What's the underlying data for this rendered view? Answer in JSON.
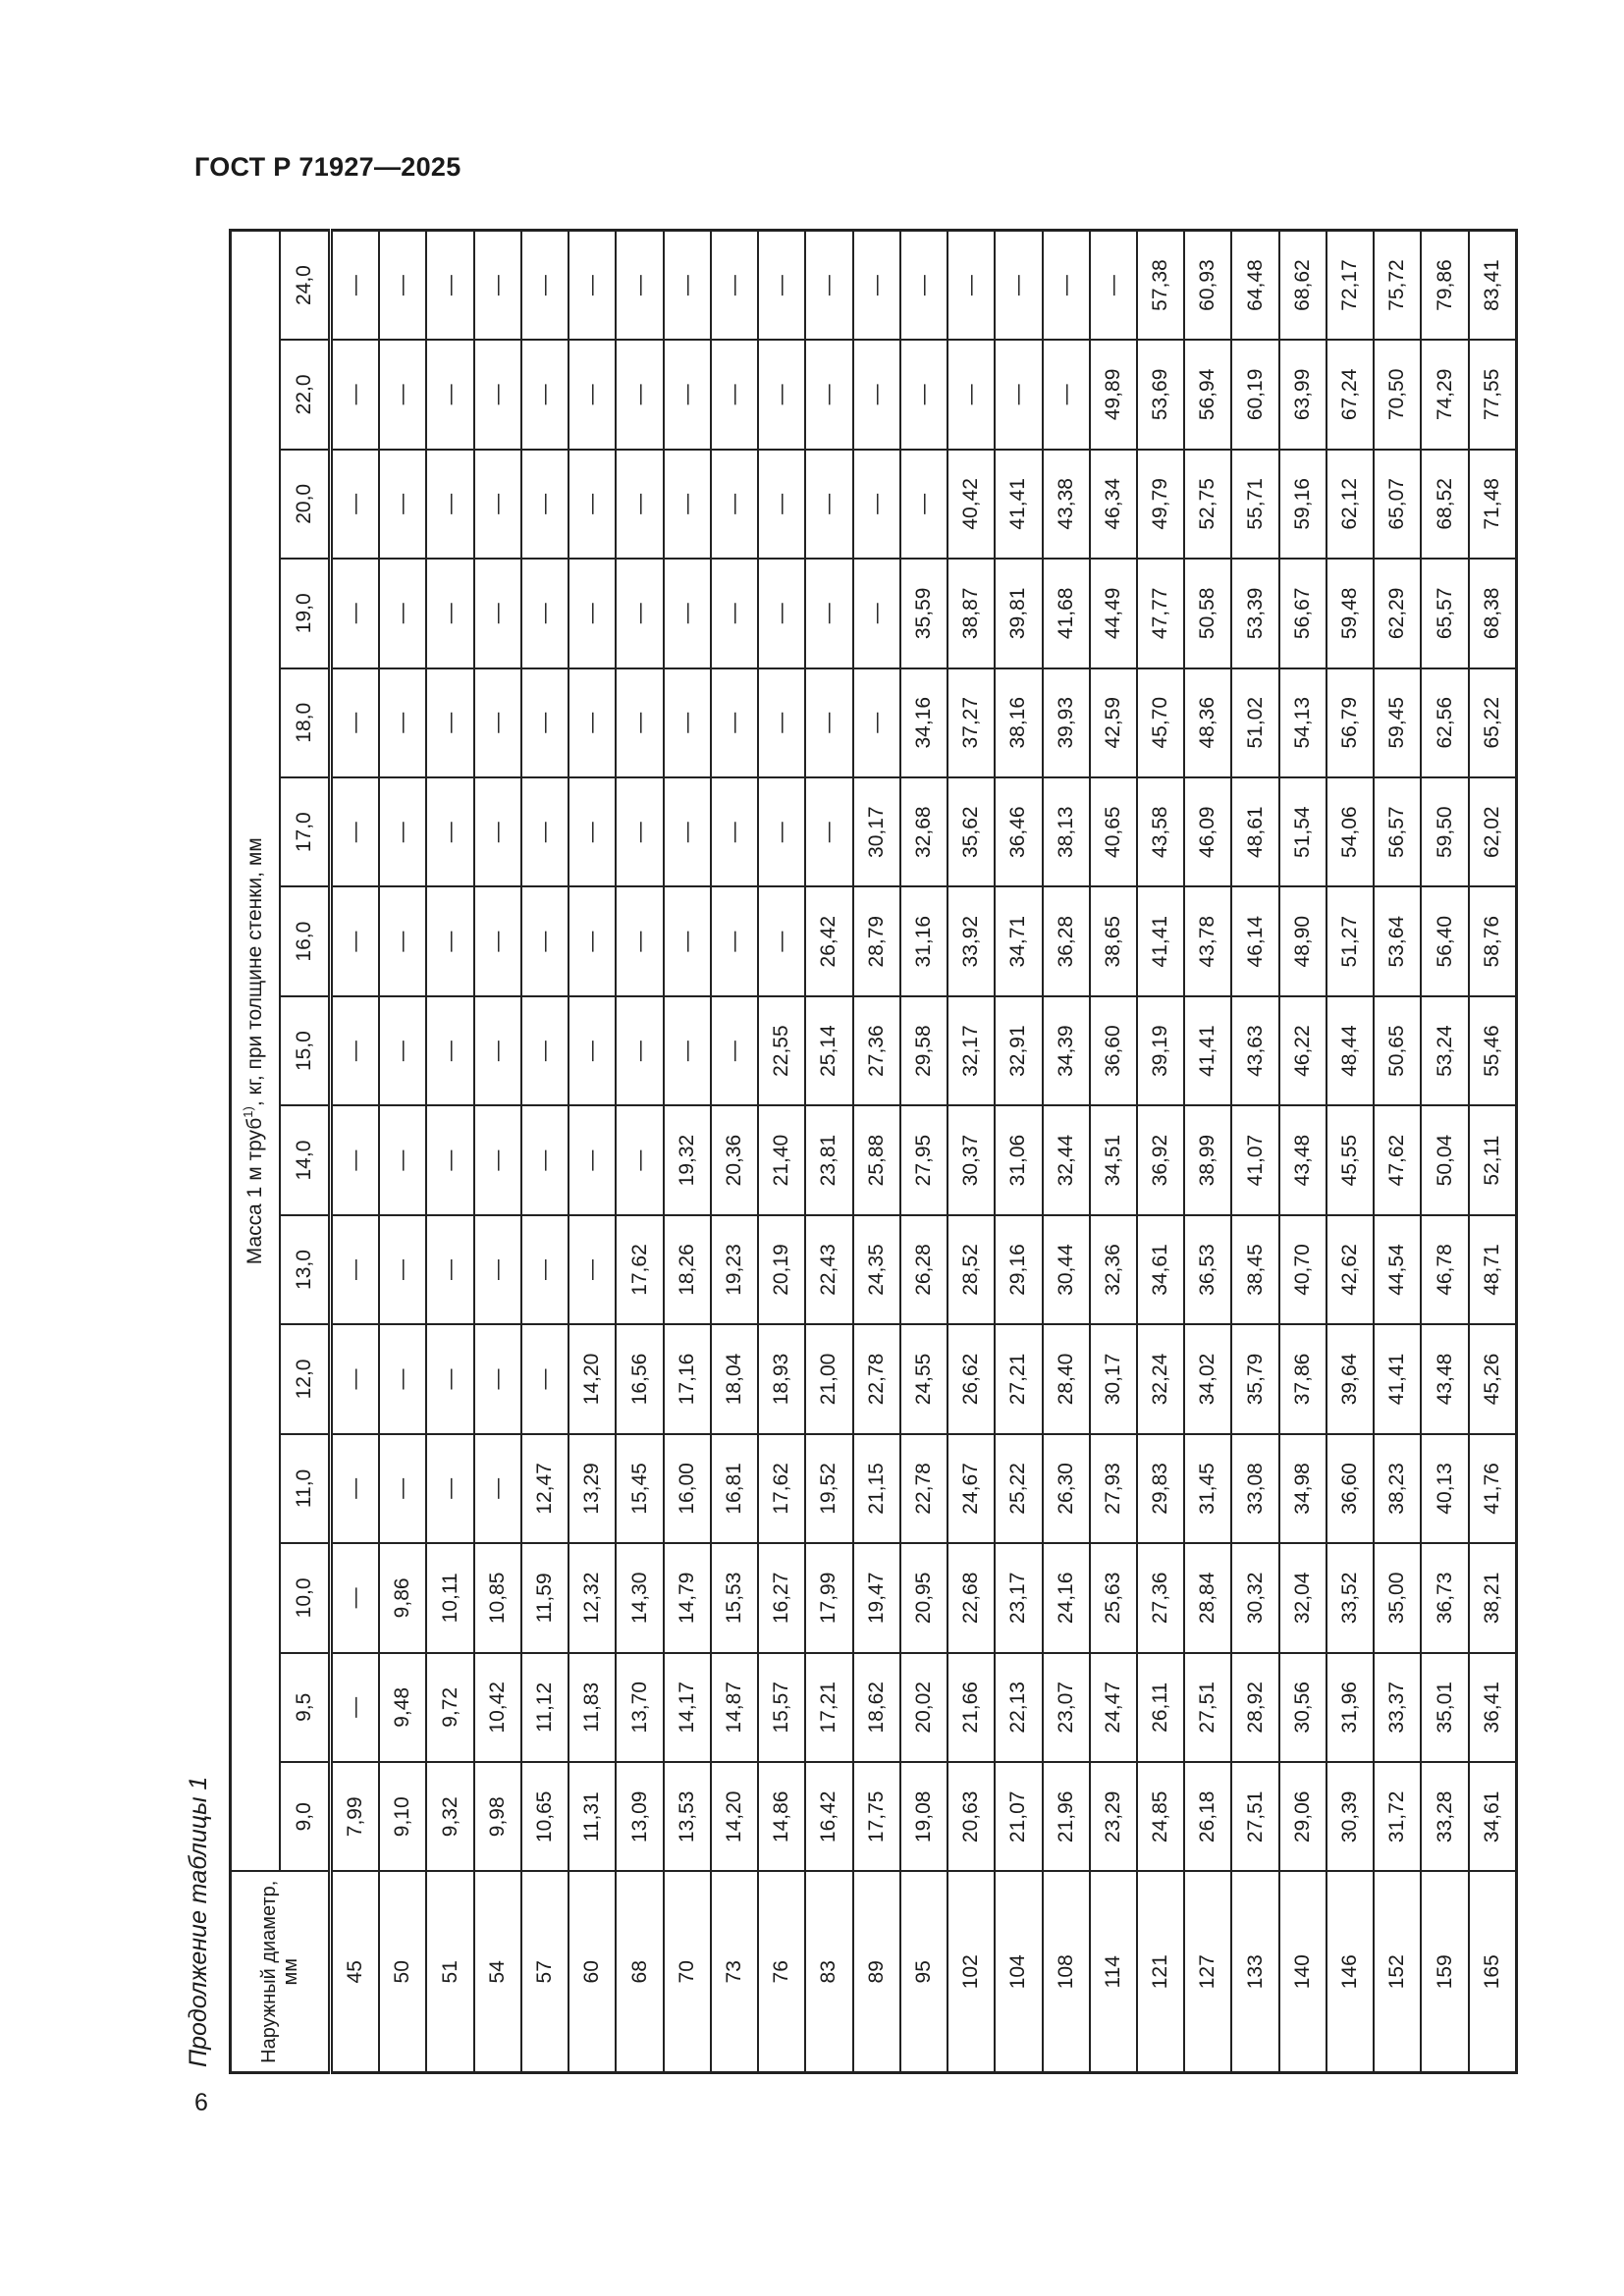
{
  "header": {
    "doc_title": "ГОСТ Р 71927—2025"
  },
  "footer": {
    "page_number": "6"
  },
  "caption": "Продолжение таблицы 1",
  "table": {
    "diameter_header": "Наружный диаметр, мм",
    "mass_header_prefix": "Масса 1 м труб",
    "mass_header_sup": "1)",
    "mass_header_suffix": ", кг, при толщине стенки, мм",
    "thicknesses": [
      "9,0",
      "9,5",
      "10,0",
      "11,0",
      "12,0",
      "13,0",
      "14,0",
      "15,0",
      "16,0",
      "17,0",
      "18,0",
      "19,0",
      "20,0",
      "22,0",
      "24,0"
    ],
    "rows": [
      {
        "d": "45",
        "v": [
          "7,99",
          "—",
          "—",
          "—",
          "—",
          "—",
          "—",
          "—",
          "—",
          "—",
          "—",
          "—",
          "—",
          "—",
          "—"
        ]
      },
      {
        "d": "50",
        "v": [
          "9,10",
          "9,48",
          "9,86",
          "—",
          "—",
          "—",
          "—",
          "—",
          "—",
          "—",
          "—",
          "—",
          "—",
          "—",
          "—"
        ]
      },
      {
        "d": "51",
        "v": [
          "9,32",
          "9,72",
          "10,11",
          "—",
          "—",
          "—",
          "—",
          "—",
          "—",
          "—",
          "—",
          "—",
          "—",
          "—",
          "—"
        ]
      },
      {
        "d": "54",
        "v": [
          "9,98",
          "10,42",
          "10,85",
          "—",
          "—",
          "—",
          "—",
          "—",
          "—",
          "—",
          "—",
          "—",
          "—",
          "—",
          "—"
        ]
      },
      {
        "d": "57",
        "v": [
          "10,65",
          "11,12",
          "11,59",
          "12,47",
          "—",
          "—",
          "—",
          "—",
          "—",
          "—",
          "—",
          "—",
          "—",
          "—",
          "—"
        ]
      },
      {
        "d": "60",
        "v": [
          "11,31",
          "11,83",
          "12,32",
          "13,29",
          "14,20",
          "—",
          "—",
          "—",
          "—",
          "—",
          "—",
          "—",
          "—",
          "—",
          "—"
        ]
      },
      {
        "d": "68",
        "v": [
          "13,09",
          "13,70",
          "14,30",
          "15,45",
          "16,56",
          "17,62",
          "—",
          "—",
          "—",
          "—",
          "—",
          "—",
          "—",
          "—",
          "—"
        ]
      },
      {
        "d": "70",
        "v": [
          "13,53",
          "14,17",
          "14,79",
          "16,00",
          "17,16",
          "18,26",
          "19,32",
          "—",
          "—",
          "—",
          "—",
          "—",
          "—",
          "—",
          "—"
        ]
      },
      {
        "d": "73",
        "v": [
          "14,20",
          "14,87",
          "15,53",
          "16,81",
          "18,04",
          "19,23",
          "20,36",
          "—",
          "—",
          "—",
          "—",
          "—",
          "—",
          "—",
          "—"
        ]
      },
      {
        "d": "76",
        "v": [
          "14,86",
          "15,57",
          "16,27",
          "17,62",
          "18,93",
          "20,19",
          "21,40",
          "22,55",
          "—",
          "—",
          "—",
          "—",
          "—",
          "—",
          "—"
        ]
      },
      {
        "d": "83",
        "v": [
          "16,42",
          "17,21",
          "17,99",
          "19,52",
          "21,00",
          "22,43",
          "23,81",
          "25,14",
          "26,42",
          "—",
          "—",
          "—",
          "—",
          "—",
          "—"
        ]
      },
      {
        "d": "89",
        "v": [
          "17,75",
          "18,62",
          "19,47",
          "21,15",
          "22,78",
          "24,35",
          "25,88",
          "27,36",
          "28,79",
          "30,17",
          "—",
          "—",
          "—",
          "—",
          "—"
        ]
      },
      {
        "d": "95",
        "v": [
          "19,08",
          "20,02",
          "20,95",
          "22,78",
          "24,55",
          "26,28",
          "27,95",
          "29,58",
          "31,16",
          "32,68",
          "34,16",
          "35,59",
          "—",
          "—",
          "—"
        ]
      },
      {
        "d": "102",
        "v": [
          "20,63",
          "21,66",
          "22,68",
          "24,67",
          "26,62",
          "28,52",
          "30,37",
          "32,17",
          "33,92",
          "35,62",
          "37,27",
          "38,87",
          "40,42",
          "—",
          "—"
        ]
      },
      {
        "d": "104",
        "v": [
          "21,07",
          "22,13",
          "23,17",
          "25,22",
          "27,21",
          "29,16",
          "31,06",
          "32,91",
          "34,71",
          "36,46",
          "38,16",
          "39,81",
          "41,41",
          "—",
          "—"
        ]
      },
      {
        "d": "108",
        "v": [
          "21,96",
          "23,07",
          "24,16",
          "26,30",
          "28,40",
          "30,44",
          "32,44",
          "34,39",
          "36,28",
          "38,13",
          "39,93",
          "41,68",
          "43,38",
          "—",
          "—"
        ]
      },
      {
        "d": "114",
        "v": [
          "23,29",
          "24,47",
          "25,63",
          "27,93",
          "30,17",
          "32,36",
          "34,51",
          "36,60",
          "38,65",
          "40,65",
          "42,59",
          "44,49",
          "46,34",
          "49,89",
          "—"
        ]
      },
      {
        "d": "121",
        "v": [
          "24,85",
          "26,11",
          "27,36",
          "29,83",
          "32,24",
          "34,61",
          "36,92",
          "39,19",
          "41,41",
          "43,58",
          "45,70",
          "47,77",
          "49,79",
          "53,69",
          "57,38"
        ]
      },
      {
        "d": "127",
        "v": [
          "26,18",
          "27,51",
          "28,84",
          "31,45",
          "34,02",
          "36,53",
          "38,99",
          "41,41",
          "43,78",
          "46,09",
          "48,36",
          "50,58",
          "52,75",
          "56,94",
          "60,93"
        ]
      },
      {
        "d": "133",
        "v": [
          "27,51",
          "28,92",
          "30,32",
          "33,08",
          "35,79",
          "38,45",
          "41,07",
          "43,63",
          "46,14",
          "48,61",
          "51,02",
          "53,39",
          "55,71",
          "60,19",
          "64,48"
        ]
      },
      {
        "d": "140",
        "v": [
          "29,06",
          "30,56",
          "32,04",
          "34,98",
          "37,86",
          "40,70",
          "43,48",
          "46,22",
          "48,90",
          "51,54",
          "54,13",
          "56,67",
          "59,16",
          "63,99",
          "68,62"
        ]
      },
      {
        "d": "146",
        "v": [
          "30,39",
          "31,96",
          "33,52",
          "36,60",
          "39,64",
          "42,62",
          "45,55",
          "48,44",
          "51,27",
          "54,06",
          "56,79",
          "59,48",
          "62,12",
          "67,24",
          "72,17"
        ]
      },
      {
        "d": "152",
        "v": [
          "31,72",
          "33,37",
          "35,00",
          "38,23",
          "41,41",
          "44,54",
          "47,62",
          "50,65",
          "53,64",
          "56,57",
          "59,45",
          "62,29",
          "65,07",
          "70,50",
          "75,72"
        ]
      },
      {
        "d": "159",
        "v": [
          "33,28",
          "35,01",
          "36,73",
          "40,13",
          "43,48",
          "46,78",
          "50,04",
          "53,24",
          "56,40",
          "59,50",
          "62,56",
          "65,57",
          "68,52",
          "74,29",
          "79,86"
        ]
      },
      {
        "d": "165",
        "v": [
          "34,61",
          "36,41",
          "38,21",
          "41,76",
          "45,26",
          "48,71",
          "52,11",
          "55,46",
          "58,76",
          "62,02",
          "65,22",
          "68,38",
          "71,48",
          "77,55",
          "83,41"
        ]
      }
    ]
  }
}
